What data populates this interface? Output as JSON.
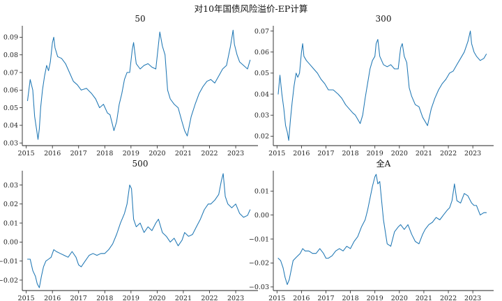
{
  "suptitle": "对10年国债风险溢价-EP计算",
  "colors": {
    "series": "#1f77b4",
    "axis": "#222222"
  },
  "chart_data": [
    {
      "type": "line",
      "title": "50",
      "xlabel": "",
      "ylabel": "",
      "xlim": [
        2014.85,
        2023.85
      ],
      "ylim": [
        0.0285,
        0.0965
      ],
      "x_ticks": [
        2015,
        2016,
        2017,
        2018,
        2019,
        2020,
        2021,
        2022,
        2023
      ],
      "y_ticks": [
        0.03,
        0.04,
        0.05,
        0.06,
        0.07,
        0.08,
        0.09
      ],
      "y_tick_labels": [
        "0.03",
        "0.04",
        "0.05",
        "0.06",
        "0.07",
        "0.08",
        "0.09"
      ],
      "grid": false,
      "x": [
        2015.05,
        2015.15,
        2015.25,
        2015.32,
        2015.4,
        2015.45,
        2015.5,
        2015.55,
        2015.62,
        2015.7,
        2015.78,
        2015.85,
        2015.92,
        2016.0,
        2016.05,
        2016.1,
        2016.2,
        2016.35,
        2016.5,
        2016.65,
        2016.8,
        2016.95,
        2017.1,
        2017.3,
        2017.5,
        2017.65,
        2017.8,
        2017.95,
        2018.1,
        2018.2,
        2018.3,
        2018.35,
        2018.45,
        2018.55,
        2018.65,
        2018.75,
        2018.85,
        2018.95,
        2019.05,
        2019.1,
        2019.2,
        2019.35,
        2019.5,
        2019.65,
        2019.8,
        2019.95,
        2020.05,
        2020.1,
        2020.2,
        2020.3,
        2020.4,
        2020.5,
        2020.65,
        2020.8,
        2020.95,
        2021.05,
        2021.15,
        2021.3,
        2021.45,
        2021.6,
        2021.75,
        2021.9,
        2022.05,
        2022.2,
        2022.35,
        2022.5,
        2022.65,
        2022.8,
        2022.9,
        2022.95,
        2023.05,
        2023.15,
        2023.3,
        2023.45,
        2023.55
      ],
      "values": [
        0.054,
        0.066,
        0.06,
        0.045,
        0.037,
        0.032,
        0.038,
        0.05,
        0.06,
        0.068,
        0.074,
        0.071,
        0.076,
        0.087,
        0.09,
        0.084,
        0.079,
        0.078,
        0.075,
        0.07,
        0.065,
        0.063,
        0.06,
        0.061,
        0.058,
        0.055,
        0.05,
        0.052,
        0.047,
        0.046,
        0.04,
        0.037,
        0.042,
        0.052,
        0.058,
        0.066,
        0.07,
        0.07,
        0.083,
        0.087,
        0.075,
        0.072,
        0.074,
        0.075,
        0.073,
        0.072,
        0.086,
        0.093,
        0.085,
        0.08,
        0.06,
        0.055,
        0.052,
        0.05,
        0.042,
        0.037,
        0.034,
        0.045,
        0.052,
        0.058,
        0.062,
        0.065,
        0.066,
        0.064,
        0.068,
        0.072,
        0.074,
        0.085,
        0.094,
        0.086,
        0.08,
        0.076,
        0.074,
        0.072,
        0.077
      ]
    },
    {
      "type": "line",
      "title": "300",
      "xlabel": "",
      "ylabel": "",
      "xlim": [
        2014.85,
        2023.85
      ],
      "ylim": [
        0.0155,
        0.0725
      ],
      "x_ticks": [
        2015,
        2016,
        2017,
        2018,
        2019,
        2020,
        2021,
        2022,
        2023
      ],
      "y_ticks": [
        0.02,
        0.03,
        0.04,
        0.05,
        0.06,
        0.07
      ],
      "y_tick_labels": [
        "0.02",
        "0.03",
        "0.04",
        "0.05",
        "0.06",
        "0.07"
      ],
      "grid": false,
      "x": [
        2015.05,
        2015.12,
        2015.2,
        2015.28,
        2015.35,
        2015.42,
        2015.48,
        2015.55,
        2015.62,
        2015.7,
        2015.78,
        2015.85,
        2015.92,
        2016.0,
        2016.05,
        2016.1,
        2016.2,
        2016.35,
        2016.5,
        2016.65,
        2016.8,
        2016.95,
        2017.1,
        2017.3,
        2017.5,
        2017.65,
        2017.8,
        2017.95,
        2018.1,
        2018.2,
        2018.3,
        2018.4,
        2018.5,
        2018.6,
        2018.7,
        2018.8,
        2018.9,
        2019.0,
        2019.05,
        2019.12,
        2019.2,
        2019.35,
        2019.5,
        2019.65,
        2019.8,
        2019.95,
        2020.05,
        2020.12,
        2020.2,
        2020.3,
        2020.4,
        2020.5,
        2020.65,
        2020.8,
        2020.95,
        2021.05,
        2021.15,
        2021.3,
        2021.45,
        2021.6,
        2021.75,
        2021.9,
        2022.05,
        2022.2,
        2022.35,
        2022.5,
        2022.65,
        2022.8,
        2022.9,
        2022.95,
        2023.05,
        2023.15,
        2023.3,
        2023.45,
        2023.55
      ],
      "values": [
        0.04,
        0.049,
        0.04,
        0.033,
        0.025,
        0.022,
        0.018,
        0.028,
        0.036,
        0.044,
        0.05,
        0.048,
        0.05,
        0.06,
        0.064,
        0.058,
        0.056,
        0.054,
        0.052,
        0.05,
        0.047,
        0.045,
        0.042,
        0.042,
        0.04,
        0.038,
        0.035,
        0.033,
        0.031,
        0.03,
        0.028,
        0.026,
        0.03,
        0.038,
        0.045,
        0.052,
        0.056,
        0.058,
        0.064,
        0.066,
        0.058,
        0.054,
        0.053,
        0.054,
        0.052,
        0.052,
        0.062,
        0.064,
        0.058,
        0.055,
        0.043,
        0.039,
        0.035,
        0.034,
        0.029,
        0.027,
        0.025,
        0.033,
        0.038,
        0.042,
        0.045,
        0.047,
        0.05,
        0.051,
        0.054,
        0.057,
        0.06,
        0.065,
        0.07,
        0.064,
        0.06,
        0.058,
        0.056,
        0.057,
        0.059
      ]
    },
    {
      "type": "line",
      "title": "500",
      "xlabel": "",
      "ylabel": "",
      "xlim": [
        2014.85,
        2023.85
      ],
      "ylim": [
        -0.0255,
        0.0375
      ],
      "x_ticks": [
        2015,
        2016,
        2017,
        2018,
        2019,
        2020,
        2021,
        2022,
        2023
      ],
      "y_ticks": [
        -0.02,
        -0.01,
        0.0,
        0.01,
        0.02,
        0.03
      ],
      "y_tick_labels": [
        "−0.02",
        "−0.01",
        "0.00",
        "0.01",
        "0.02",
        "0.03"
      ],
      "grid": false,
      "x": [
        2015.05,
        2015.15,
        2015.25,
        2015.35,
        2015.42,
        2015.5,
        2015.58,
        2015.66,
        2015.75,
        2015.85,
        2015.95,
        2016.05,
        2016.15,
        2016.3,
        2016.45,
        2016.6,
        2016.75,
        2016.9,
        2017.0,
        2017.1,
        2017.25,
        2017.4,
        2017.55,
        2017.7,
        2017.85,
        2018.0,
        2018.15,
        2018.3,
        2018.45,
        2018.6,
        2018.75,
        2018.85,
        2018.95,
        2019.02,
        2019.1,
        2019.2,
        2019.35,
        2019.5,
        2019.65,
        2019.8,
        2019.95,
        2020.05,
        2020.2,
        2020.35,
        2020.5,
        2020.65,
        2020.8,
        2020.95,
        2021.05,
        2021.2,
        2021.35,
        2021.5,
        2021.65,
        2021.8,
        2021.95,
        2022.05,
        2022.2,
        2022.35,
        2022.45,
        2022.52,
        2022.6,
        2022.7,
        2022.85,
        2023.0,
        2023.15,
        2023.3,
        2023.45,
        2023.55
      ],
      "values": [
        -0.009,
        -0.009,
        -0.015,
        -0.018,
        -0.022,
        -0.024,
        -0.018,
        -0.013,
        -0.01,
        -0.009,
        -0.008,
        -0.004,
        -0.005,
        -0.006,
        -0.007,
        -0.008,
        -0.005,
        -0.008,
        -0.012,
        -0.013,
        -0.01,
        -0.007,
        -0.006,
        -0.007,
        -0.006,
        -0.006,
        -0.004,
        -0.001,
        0.004,
        0.01,
        0.015,
        0.02,
        0.03,
        0.028,
        0.012,
        0.008,
        0.01,
        0.005,
        0.008,
        0.006,
        0.01,
        0.012,
        0.005,
        0.003,
        0.0,
        0.002,
        -0.002,
        0.001,
        0.005,
        0.003,
        0.004,
        0.008,
        0.012,
        0.017,
        0.02,
        0.02,
        0.022,
        0.025,
        0.032,
        0.036,
        0.024,
        0.02,
        0.018,
        0.02,
        0.015,
        0.013,
        0.014,
        0.017
      ]
    },
    {
      "type": "line",
      "title": "全A",
      "xlabel": "",
      "ylabel": "",
      "xlim": [
        2014.85,
        2023.85
      ],
      "ylim": [
        -0.0315,
        0.0185
      ],
      "x_ticks": [
        2015,
        2016,
        2017,
        2018,
        2019,
        2020,
        2021,
        2022,
        2023
      ],
      "y_ticks": [
        -0.03,
        -0.02,
        -0.01,
        0.0,
        0.01
      ],
      "y_tick_labels": [
        "−0.03",
        "−0.02",
        "−0.01",
        "0.00",
        "0.01"
      ],
      "grid": false,
      "x": [
        2015.05,
        2015.15,
        2015.25,
        2015.33,
        2015.42,
        2015.5,
        2015.58,
        2015.66,
        2015.75,
        2015.85,
        2015.95,
        2016.05,
        2016.15,
        2016.3,
        2016.45,
        2016.6,
        2016.75,
        2016.9,
        2017.0,
        2017.1,
        2017.25,
        2017.4,
        2017.55,
        2017.7,
        2017.85,
        2018.0,
        2018.15,
        2018.3,
        2018.45,
        2018.6,
        2018.7,
        2018.8,
        2018.9,
        2019.0,
        2019.05,
        2019.12,
        2019.2,
        2019.35,
        2019.5,
        2019.65,
        2019.8,
        2019.95,
        2020.05,
        2020.2,
        2020.35,
        2020.5,
        2020.65,
        2020.8,
        2020.95,
        2021.05,
        2021.2,
        2021.35,
        2021.5,
        2021.65,
        2021.8,
        2021.95,
        2022.05,
        2022.15,
        2022.25,
        2022.35,
        2022.5,
        2022.65,
        2022.8,
        2022.95,
        2023.05,
        2023.15,
        2023.3,
        2023.45,
        2023.55
      ],
      "values": [
        -0.018,
        -0.019,
        -0.022,
        -0.026,
        -0.029,
        -0.027,
        -0.023,
        -0.019,
        -0.018,
        -0.017,
        -0.016,
        -0.014,
        -0.015,
        -0.015,
        -0.016,
        -0.016,
        -0.014,
        -0.016,
        -0.018,
        -0.018,
        -0.017,
        -0.015,
        -0.014,
        -0.015,
        -0.013,
        -0.014,
        -0.011,
        -0.009,
        -0.005,
        -0.002,
        0.002,
        0.007,
        0.012,
        0.016,
        0.017,
        0.013,
        0.014,
        -0.002,
        -0.012,
        -0.013,
        -0.007,
        -0.005,
        -0.004,
        -0.006,
        -0.004,
        -0.008,
        -0.011,
        -0.012,
        -0.008,
        -0.006,
        -0.004,
        -0.003,
        -0.001,
        -0.002,
        0.0,
        0.002,
        0.003,
        0.006,
        0.013,
        0.006,
        0.005,
        0.009,
        0.008,
        0.005,
        0.004,
        0.004,
        0.0,
        0.001,
        0.001
      ]
    }
  ]
}
